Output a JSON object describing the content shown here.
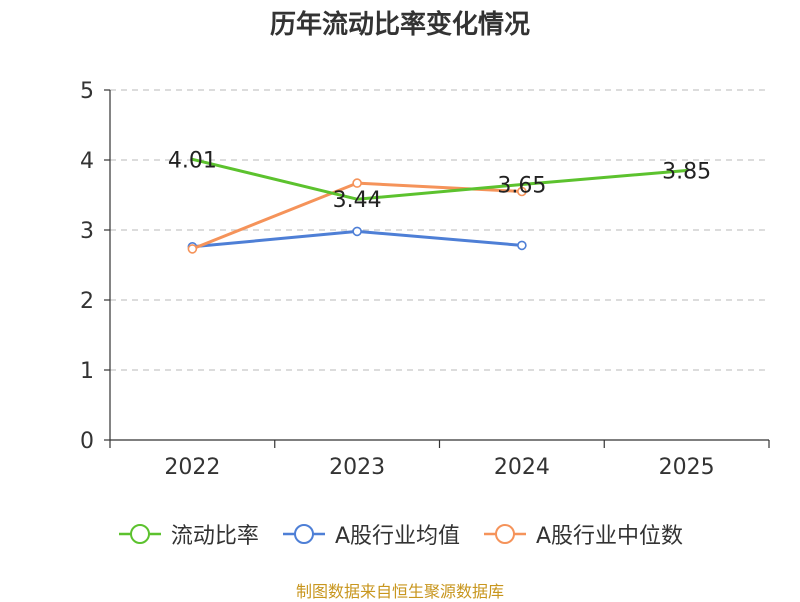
{
  "page": {
    "title": "历年流动比率变化情况",
    "source": "制图数据来自恒生聚源数据库"
  },
  "chart_data": {
    "type": "line",
    "title": "历年流动比率变化情况",
    "xlabel": "",
    "ylabel": "",
    "categories": [
      "2022",
      "2023",
      "2024",
      "2025"
    ],
    "ylim": [
      0,
      5
    ],
    "yticks": [
      0,
      1,
      2,
      3,
      4,
      5
    ],
    "grid": true,
    "legend_position": "bottom",
    "series": [
      {
        "name": "流动比率",
        "color": "#5cc22e",
        "values": [
          4.01,
          3.44,
          3.65,
          3.85
        ],
        "labels": [
          "4.01",
          "3.44",
          "3.65",
          "3.85"
        ],
        "show_markers": false
      },
      {
        "name": "A股行业均值",
        "color": "#4e7fd6",
        "values": [
          2.76,
          2.98,
          2.78,
          null
        ],
        "labels": null,
        "show_markers": true
      },
      {
        "name": "A股行业中位数",
        "color": "#f5935a",
        "values": [
          2.73,
          3.67,
          3.55,
          null
        ],
        "labels": null,
        "show_markers": true
      }
    ]
  }
}
